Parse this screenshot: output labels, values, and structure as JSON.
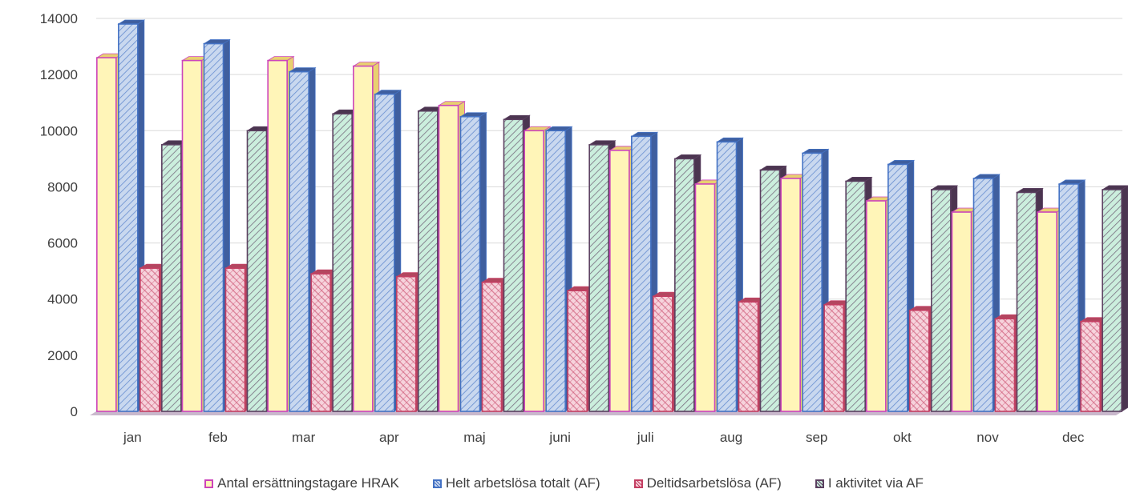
{
  "chart_data": {
    "type": "bar",
    "title": "",
    "xlabel": "",
    "ylabel": "",
    "ylim": [
      0,
      14000
    ],
    "yticks": [
      0,
      2000,
      4000,
      6000,
      8000,
      10000,
      12000,
      14000
    ],
    "grid": true,
    "legend_position": "bottom",
    "categories": [
      "jan",
      "feb",
      "mar",
      "apr",
      "maj",
      "juni",
      "juli",
      "aug",
      "sep",
      "okt",
      "nov",
      "dec"
    ],
    "series": [
      {
        "name": "Antal ersättningstagare HRAK",
        "face": "#fff5b8",
        "side": "#e8d070",
        "edge": "#cc44bb",
        "pattern": "none",
        "values": [
          12600,
          12500,
          12500,
          12300,
          10900,
          10000,
          9300,
          8100,
          8300,
          7500,
          7100,
          7100
        ]
      },
      {
        "name": "Helt arbetslösa totalt (AF)",
        "face": "#c9d8ef",
        "side": "#3f5f9f",
        "edge": "#4472c4",
        "pattern": "hatch",
        "values": [
          13800,
          13100,
          12100,
          11300,
          10500,
          10000,
          9800,
          9600,
          9200,
          8800,
          8300,
          8100
        ]
      },
      {
        "name": "Deltidsarbetslösa (AF)",
        "face": "#f6d3dc",
        "side": "#b3465f",
        "edge": "#c43f63",
        "pattern": "cross",
        "values": [
          5100,
          5100,
          4900,
          4800,
          4600,
          4300,
          4100,
          3900,
          3800,
          3600,
          3300,
          3200
        ]
      },
      {
        "name": "I aktivitet via AF",
        "face": "#cbeedd",
        "side": "#4b3550",
        "edge": "#5b4060",
        "pattern": "hatch",
        "values": [
          9500,
          10000,
          10600,
          10700,
          10400,
          9500,
          9000,
          8600,
          8200,
          7900,
          7800,
          7900
        ]
      }
    ]
  }
}
